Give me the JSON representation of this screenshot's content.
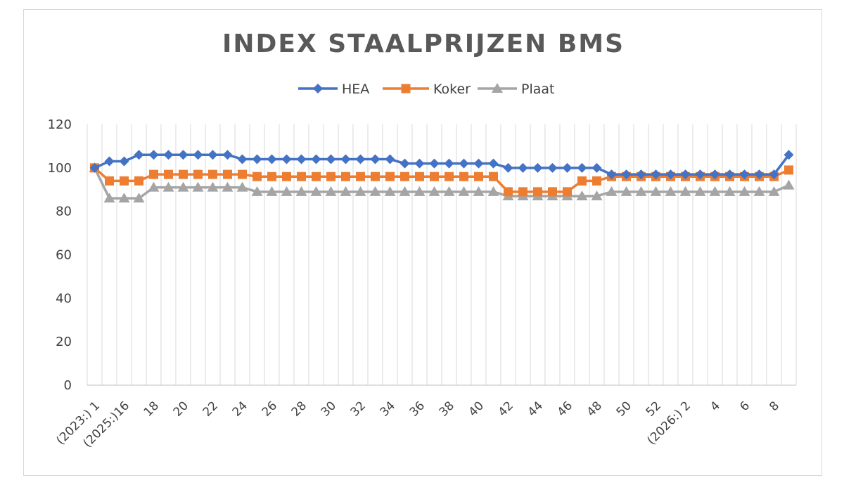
{
  "chart_data": {
    "type": "line",
    "title": "INDEX STAALPRIJZEN BMS",
    "xlabel": "",
    "ylabel": "",
    "ylim": [
      0,
      120
    ],
    "yticks": [
      0,
      20,
      40,
      60,
      80,
      100,
      120
    ],
    "legend_position": "top-center",
    "grid": "vertical",
    "x_tick_labels": [
      "(2023:) 1",
      "(2025:)16",
      "18",
      "20",
      "22",
      "24",
      "26",
      "28",
      "30",
      "32",
      "34",
      "36",
      "38",
      "40",
      "42",
      "44",
      "46",
      "48",
      "50",
      "52",
      "(2026:) 2",
      "4",
      "6",
      "8"
    ],
    "x_tick_label_index": [
      0,
      2,
      4,
      6,
      8,
      10,
      12,
      14,
      16,
      18,
      20,
      22,
      24,
      26,
      28,
      30,
      32,
      34,
      36,
      38,
      40,
      42,
      44,
      46
    ],
    "num_points": 48,
    "series": [
      {
        "name": "HEA",
        "color": "#4472C4",
        "marker": "diamond",
        "values": [
          100,
          103,
          103,
          106,
          106,
          106,
          106,
          106,
          106,
          106,
          104,
          104,
          104,
          104,
          104,
          104,
          104,
          104,
          104,
          104,
          104,
          102,
          102,
          102,
          102,
          102,
          102,
          102,
          100,
          100,
          100,
          100,
          100,
          100,
          100,
          97,
          97,
          97,
          97,
          97,
          97,
          97,
          97,
          97,
          97,
          97,
          97,
          106
        ]
      },
      {
        "name": "Koker",
        "color": "#ED7D31",
        "marker": "square",
        "values": [
          100,
          94,
          94,
          94,
          97,
          97,
          97,
          97,
          97,
          97,
          97,
          96,
          96,
          96,
          96,
          96,
          96,
          96,
          96,
          96,
          96,
          96,
          96,
          96,
          96,
          96,
          96,
          96,
          89,
          89,
          89,
          89,
          89,
          94,
          94,
          96,
          96,
          96,
          96,
          96,
          96,
          96,
          96,
          96,
          96,
          96,
          96,
          99
        ]
      },
      {
        "name": "Plaat",
        "color": "#A5A5A5",
        "marker": "triangle",
        "values": [
          100,
          86,
          86,
          86,
          91,
          91,
          91,
          91,
          91,
          91,
          91,
          89,
          89,
          89,
          89,
          89,
          89,
          89,
          89,
          89,
          89,
          89,
          89,
          89,
          89,
          89,
          89,
          89,
          87,
          87,
          87,
          87,
          87,
          87,
          87,
          89,
          89,
          89,
          89,
          89,
          89,
          89,
          89,
          89,
          89,
          89,
          89,
          92
        ]
      }
    ]
  }
}
